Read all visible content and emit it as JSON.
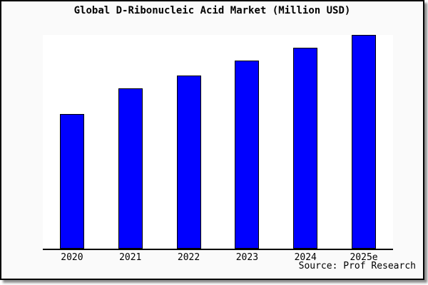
{
  "chart": {
    "bar_color": "#0000ff",
    "bar_outline_color": "#000000",
    "axis_color": "#000000",
    "frame_border_color": "#000000",
    "figure_background": "#fafafa",
    "plot_background": "#ffffff",
    "text_color": "#000000"
  },
  "chart_data": {
    "type": "bar",
    "title": "Global D-Ribonucleic Acid Market (Million USD)",
    "categories": [
      "2020",
      "2021",
      "2022",
      "2023",
      "2024",
      "2025e"
    ],
    "values": [
      63,
      75,
      81,
      88,
      94,
      100
    ],
    "xlabel": "",
    "ylabel": "",
    "ylim": [
      0,
      100
    ],
    "y_axis_labels_visible": false,
    "grid": false,
    "legend": false,
    "annotations": [
      "Source: Prof Research"
    ]
  }
}
